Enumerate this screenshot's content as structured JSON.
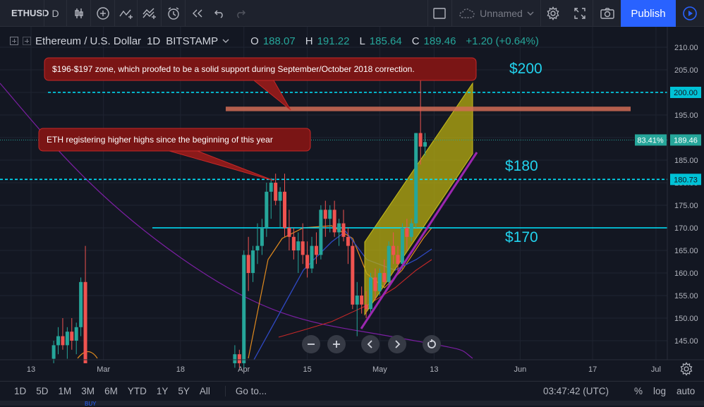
{
  "toolbar": {
    "symbol": "ETHUSD",
    "interval": "D",
    "layout_name": "Unnamed",
    "publish_label": "Publish"
  },
  "legend": {
    "title": "Ethereum / U.S. Dollar",
    "interval": "1D",
    "exchange": "BITSTAMP",
    "open_label": "O",
    "open": "188.07",
    "high_label": "H",
    "high": "191.22",
    "low_label": "L",
    "low": "185.64",
    "close_label": "C",
    "close": "189.46",
    "change": "+1.20 (+0.64%)"
  },
  "chart_data": {
    "type": "candlestick",
    "ylim": [
      140,
      213
    ],
    "y_ticks": [
      145,
      150,
      155,
      160,
      165,
      170,
      175,
      180,
      185,
      190,
      195,
      200,
      205,
      210
    ],
    "y_tick_labels": [
      "145.00",
      "150.00",
      "155.00",
      "160.00",
      "165.00",
      "170.00",
      "175.00",
      "180.00",
      "185.00",
      "190.00",
      "195.00",
      "200.00",
      "205.00",
      "210.00"
    ],
    "x_ticks": [
      {
        "label": "13",
        "day": 0
      },
      {
        "label": "Mar",
        "day": 16
      },
      {
        "label": "18",
        "day": 33
      },
      {
        "label": "Apr",
        "day": 47
      },
      {
        "label": "15",
        "day": 61
      },
      {
        "label": "May",
        "day": 77
      },
      {
        "label": "13",
        "day": 89
      },
      {
        "label": "Jun",
        "day": 108
      },
      {
        "label": "17",
        "day": 124
      },
      {
        "label": "Jul",
        "day": 138
      }
    ],
    "candles": [
      {
        "d": 5,
        "o": 141,
        "h": 145,
        "l": 140,
        "c": 144
      },
      {
        "d": 6,
        "o": 144,
        "h": 148,
        "l": 142,
        "c": 146
      },
      {
        "d": 7,
        "o": 146,
        "h": 150,
        "l": 143,
        "c": 144
      },
      {
        "d": 8,
        "o": 144,
        "h": 148,
        "l": 141,
        "c": 147
      },
      {
        "d": 9,
        "o": 147,
        "h": 150,
        "l": 143,
        "c": 145
      },
      {
        "d": 10,
        "o": 145,
        "h": 149,
        "l": 142,
        "c": 148
      },
      {
        "d": 11,
        "o": 148,
        "h": 159,
        "l": 146,
        "c": 158
      },
      {
        "d": 12,
        "o": 158,
        "h": 166,
        "l": 140,
        "c": 140
      },
      {
        "d": 45,
        "o": 140,
        "h": 144,
        "l": 139,
        "c": 142
      },
      {
        "d": 46,
        "o": 142,
        "h": 143,
        "l": 139,
        "c": 140
      },
      {
        "d": 47,
        "o": 140,
        "h": 165,
        "l": 139,
        "c": 164
      },
      {
        "d": 48,
        "o": 164,
        "h": 168,
        "l": 156,
        "c": 160
      },
      {
        "d": 49,
        "o": 160,
        "h": 166,
        "l": 158,
        "c": 165
      },
      {
        "d": 50,
        "o": 165,
        "h": 171,
        "l": 162,
        "c": 166
      },
      {
        "d": 51,
        "o": 166,
        "h": 172,
        "l": 164,
        "c": 170
      },
      {
        "d": 52,
        "o": 170,
        "h": 180,
        "l": 168,
        "c": 178
      },
      {
        "d": 53,
        "o": 178,
        "h": 181,
        "l": 172,
        "c": 180
      },
      {
        "d": 54,
        "o": 180,
        "h": 182,
        "l": 175,
        "c": 176
      },
      {
        "d": 55,
        "o": 176,
        "h": 179,
        "l": 170,
        "c": 178
      },
      {
        "d": 56,
        "o": 178,
        "h": 182,
        "l": 168,
        "c": 170
      },
      {
        "d": 57,
        "o": 170,
        "h": 174,
        "l": 165,
        "c": 168
      },
      {
        "d": 58,
        "o": 168,
        "h": 170,
        "l": 163,
        "c": 165
      },
      {
        "d": 59,
        "o": 165,
        "h": 169,
        "l": 160,
        "c": 167
      },
      {
        "d": 60,
        "o": 167,
        "h": 171,
        "l": 162,
        "c": 164
      },
      {
        "d": 61,
        "o": 164,
        "h": 167,
        "l": 159,
        "c": 161
      },
      {
        "d": 62,
        "o": 161,
        "h": 168,
        "l": 160,
        "c": 166
      },
      {
        "d": 63,
        "o": 166,
        "h": 169,
        "l": 162,
        "c": 164
      },
      {
        "d": 64,
        "o": 164,
        "h": 175,
        "l": 163,
        "c": 174
      },
      {
        "d": 65,
        "o": 174,
        "h": 176,
        "l": 168,
        "c": 172
      },
      {
        "d": 66,
        "o": 172,
        "h": 175,
        "l": 169,
        "c": 174
      },
      {
        "d": 67,
        "o": 174,
        "h": 176,
        "l": 168,
        "c": 169
      },
      {
        "d": 68,
        "o": 169,
        "h": 172,
        "l": 166,
        "c": 171
      },
      {
        "d": 69,
        "o": 171,
        "h": 174,
        "l": 167,
        "c": 168
      },
      {
        "d": 70,
        "o": 168,
        "h": 170,
        "l": 162,
        "c": 166
      },
      {
        "d": 71,
        "o": 166,
        "h": 167,
        "l": 152,
        "c": 153
      },
      {
        "d": 72,
        "o": 153,
        "h": 158,
        "l": 146,
        "c": 155
      },
      {
        "d": 73,
        "o": 155,
        "h": 157,
        "l": 151,
        "c": 153
      },
      {
        "d": 74,
        "o": 153,
        "h": 156,
        "l": 150,
        "c": 152
      },
      {
        "d": 75,
        "o": 152,
        "h": 160,
        "l": 151,
        "c": 159
      },
      {
        "d": 76,
        "o": 159,
        "h": 161,
        "l": 154,
        "c": 156
      },
      {
        "d": 77,
        "o": 156,
        "h": 161,
        "l": 155,
        "c": 160
      },
      {
        "d": 78,
        "o": 160,
        "h": 163,
        "l": 157,
        "c": 158
      },
      {
        "d": 79,
        "o": 158,
        "h": 167,
        "l": 157,
        "c": 166
      },
      {
        "d": 80,
        "o": 166,
        "h": 169,
        "l": 162,
        "c": 164
      },
      {
        "d": 81,
        "o": 164,
        "h": 166,
        "l": 160,
        "c": 162
      },
      {
        "d": 82,
        "o": 162,
        "h": 171,
        "l": 161,
        "c": 170
      },
      {
        "d": 83,
        "o": 170,
        "h": 172,
        "l": 165,
        "c": 168
      },
      {
        "d": 84,
        "o": 168,
        "h": 172,
        "l": 167,
        "c": 171
      },
      {
        "d": 85,
        "o": 171,
        "h": 191,
        "l": 170,
        "c": 191
      },
      {
        "d": 86,
        "o": 191,
        "h": 207,
        "l": 184,
        "c": 188
      },
      {
        "d": 87,
        "o": 188,
        "h": 191,
        "l": 186,
        "c": 189
      }
    ],
    "price_lines": [
      {
        "value": 200,
        "label": "200.00",
        "style": "dashed"
      },
      {
        "value": 180.73,
        "label": "180.73",
        "style": "dashed"
      },
      {
        "value": 170,
        "style": "solid"
      }
    ],
    "current_price": {
      "value": 189.46,
      "label": "189.46",
      "pct_label": "83.41%"
    },
    "level_labels": [
      {
        "text": "$200",
        "value": 200
      },
      {
        "text": "$180",
        "value": 180
      },
      {
        "text": "$170",
        "value": 170
      }
    ],
    "resistance_zone": [
      196,
      197
    ],
    "annotations": [
      {
        "text": "$196-$197 zone, which proofed to be a solid support during September/October 2018 correction."
      },
      {
        "text": "ETH registering higher highs since the beginning of this year"
      }
    ]
  },
  "bottom": {
    "ranges": [
      "1D",
      "5D",
      "1M",
      "3M",
      "6M",
      "YTD",
      "1Y",
      "5Y",
      "All"
    ],
    "goto": "Go to...",
    "clock": "03:47:42 (UTC)",
    "percent": "%",
    "log": "log",
    "auto": "auto",
    "buy": "BUY"
  },
  "colors": {
    "up": "#26a69a",
    "down": "#ef5350",
    "level_line": "#00e5ff",
    "channel_fill": "#b8ad10",
    "trend_line": "#9c27b0"
  }
}
